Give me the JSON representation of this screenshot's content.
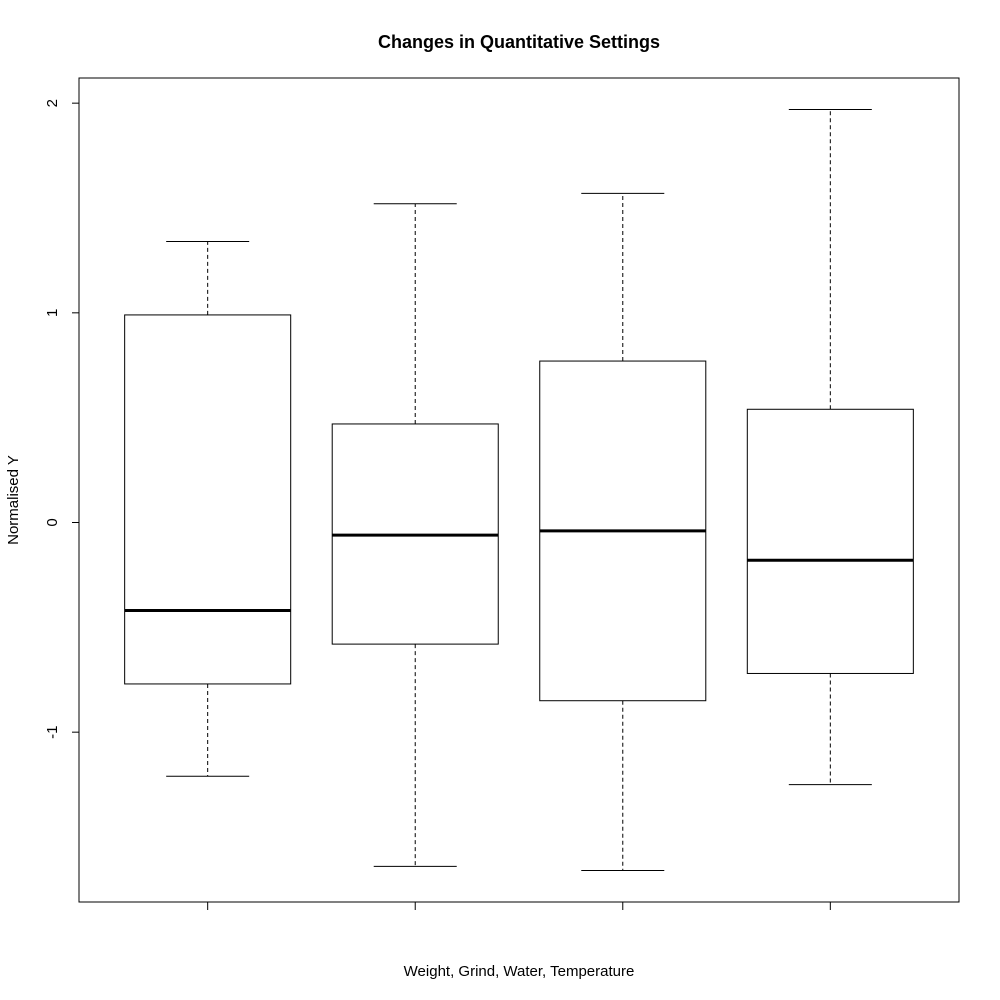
{
  "chart_data": {
    "type": "box",
    "title": "Changes in Quantitative Settings",
    "xlabel": "Weight, Grind, Water, Temperature",
    "ylabel": "Normalised Y",
    "ylim": [
      -1.81,
      2.12
    ],
    "y_ticks": [
      -1,
      0,
      1,
      2
    ],
    "y_tick_labels": [
      "-1",
      "0",
      "1",
      "2"
    ],
    "grid": false,
    "categories": [
      "",
      "",
      "",
      ""
    ],
    "boxes": [
      {
        "whisker_low": -1.21,
        "q1": -0.77,
        "median": -0.42,
        "q3": 0.99,
        "whisker_high": 1.34
      },
      {
        "whisker_low": -1.64,
        "q1": -0.58,
        "median": -0.06,
        "q3": 0.47,
        "whisker_high": 1.52
      },
      {
        "whisker_low": -1.66,
        "q1": -0.85,
        "median": -0.04,
        "q3": 0.77,
        "whisker_high": 1.57
      },
      {
        "whisker_low": -1.25,
        "q1": -0.72,
        "median": -0.18,
        "q3": 0.54,
        "whisker_high": 1.97
      }
    ]
  }
}
